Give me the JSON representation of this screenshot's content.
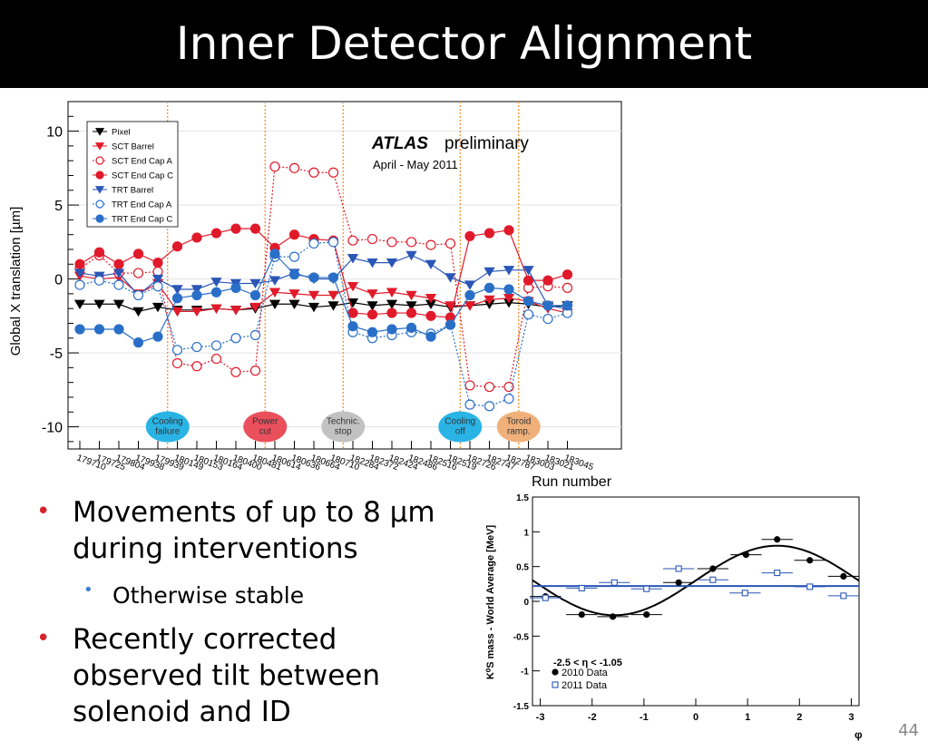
{
  "slide": {
    "title": "Inner Detector Alignment",
    "page_number": "44",
    "bullets": [
      {
        "level": 1,
        "text_lines": [
          "Movements of up to 8 µm",
          "during interventions"
        ]
      },
      {
        "level": 2,
        "text_lines": [
          "Otherwise stable"
        ]
      },
      {
        "level": 1,
        "text_lines": [
          "Recently corrected",
          "observed tilt between",
          "solenoid and ID"
        ]
      }
    ]
  },
  "chart_data": [
    {
      "type": "line",
      "ylabel": "Global X translation [µm]",
      "xlabel": "Run number",
      "ylim": [
        -11.5,
        12
      ],
      "yticks": [
        -10,
        -5,
        0,
        5,
        10
      ],
      "grid": true,
      "legend_position": "top-left",
      "annotation_main": "ATLAS",
      "annotation_sub": "preliminary",
      "annotation_period": "April - May 2011",
      "categories": [
        "179710",
        "179725",
        "179804",
        "179938",
        "179939",
        "180149",
        "180153",
        "180164",
        "180400",
        "180481",
        "180614",
        "180636",
        "180664",
        "180710",
        "182284",
        "182372",
        "182424",
        "182486",
        "182516",
        "182519",
        "182726",
        "182747",
        "182787",
        "183003",
        "183021",
        "183045"
      ],
      "events": [
        {
          "label_lines": [
            "Cooling",
            "failure"
          ],
          "after_index": 4,
          "marker_index": 4.5,
          "color": "#2ab4e6"
        },
        {
          "label_lines": [
            "Power",
            "cut"
          ],
          "after_index": 9,
          "marker_index": 9.5,
          "color": "#ea4f5c"
        },
        {
          "label_lines": [
            "Technic.",
            "stop"
          ],
          "after_index": 13,
          "marker_index": 13.5,
          "color": "#c2c2c2"
        },
        {
          "label_lines": [
            "Cooling",
            "off"
          ],
          "after_index": 19,
          "marker_index": 19.5,
          "color": "#2ab4e6"
        },
        {
          "label_lines": [
            "Toroid",
            "ramp."
          ],
          "after_index": 22,
          "marker_index": 22.5,
          "color": "#f0b07a"
        }
      ],
      "series": [
        {
          "name": "Pixel",
          "color": "#000000",
          "marker": "triangle-down",
          "dashed": false,
          "filled": true,
          "values": [
            -1.7,
            -1.7,
            -1.7,
            -2.2,
            -1.9,
            -2.1,
            -2.1,
            -2.0,
            -2.1,
            -2.0,
            -1.7,
            -1.7,
            -1.9,
            -1.8,
            -1.6,
            -1.8,
            -1.7,
            -1.8,
            -1.7,
            -1.9,
            -1.8,
            -1.7,
            -1.6,
            -1.7,
            -1.9,
            -1.8
          ]
        },
        {
          "name": "SCT Barrel",
          "color": "#e01a2a",
          "marker": "triangle-down",
          "dashed": false,
          "filled": true,
          "values": [
            0.2,
            0.0,
            0.1,
            -1.0,
            -0.3,
            -2.2,
            -2.2,
            -2.0,
            -2.1,
            -1.9,
            -0.9,
            -1.0,
            -1.1,
            -1.1,
            -0.5,
            -1.0,
            -0.9,
            -1.1,
            -1.3,
            -1.8,
            -1.8,
            -1.4,
            -1.3,
            -1.5,
            -2.0,
            -2.3
          ]
        },
        {
          "name": "SCT End Cap A",
          "color": "#e01a2a",
          "marker": "circle",
          "dashed": true,
          "filled": false,
          "values": [
            0.7,
            1.6,
            0.4,
            0.4,
            0.5,
            -5.7,
            -5.9,
            -5.4,
            -6.3,
            -6.2,
            7.6,
            7.5,
            7.2,
            7.2,
            2.6,
            2.7,
            2.5,
            2.5,
            2.3,
            2.4,
            -7.2,
            -7.3,
            -7.3,
            -0.6,
            -0.5,
            -0.6
          ]
        },
        {
          "name": "SCT End Cap C",
          "color": "#e01a2a",
          "marker": "circle",
          "dashed": false,
          "filled": true,
          "values": [
            1.0,
            1.8,
            1.0,
            1.7,
            1.1,
            2.2,
            2.8,
            3.1,
            3.4,
            3.4,
            2.1,
            3.0,
            2.7,
            2.6,
            -2.3,
            -2.4,
            -2.3,
            -2.3,
            -2.5,
            -2.6,
            2.9,
            3.1,
            3.3,
            -0.1,
            -0.1,
            0.3
          ]
        },
        {
          "name": "TRT Barrel",
          "color": "#2a56b6",
          "marker": "triangle-down",
          "dashed": false,
          "filled": true,
          "values": [
            0.4,
            0.2,
            0.4,
            -1.1,
            0.0,
            -0.7,
            -0.7,
            -0.2,
            -0.3,
            -0.3,
            -0.1,
            0.4,
            0.0,
            0.0,
            1.4,
            1.1,
            1.1,
            1.6,
            1.0,
            0.1,
            -0.4,
            0.5,
            0.6,
            0.6,
            -1.8,
            -2.0
          ]
        },
        {
          "name": "TRT End Cap A",
          "color": "#2a6fc7",
          "marker": "circle",
          "dashed": true,
          "filled": false,
          "values": [
            -0.4,
            -0.1,
            -0.4,
            -1.1,
            -0.5,
            -4.8,
            -4.6,
            -4.5,
            -4.0,
            -3.8,
            1.5,
            1.5,
            2.4,
            2.5,
            -3.6,
            -4.0,
            -3.8,
            -3.6,
            -3.7,
            -3.1,
            -8.5,
            -8.6,
            -8.1,
            -2.4,
            -2.7,
            -2.3
          ]
        },
        {
          "name": "TRT End Cap C",
          "color": "#2a6fc7",
          "marker": "circle",
          "dashed": false,
          "filled": true,
          "values": [
            -3.4,
            -3.4,
            -3.4,
            -4.3,
            -3.9,
            -1.3,
            -1.1,
            -0.9,
            -0.6,
            -1.1,
            1.7,
            0.3,
            0.1,
            0.1,
            -3.2,
            -3.6,
            -3.4,
            -3.3,
            -3.9,
            -3.1,
            -1.1,
            -0.6,
            -0.7,
            -1.5,
            -1.8,
            -1.8
          ]
        }
      ]
    },
    {
      "type": "scatter",
      "ylabel": "K<sup>0</sup><sub>S</sub> mass - World Average [MeV]",
      "ylabel_plain": "K⁰S mass - World Average [MeV]",
      "xlabel": "φ",
      "xlim": [
        -3.15,
        3.15
      ],
      "ylim": [
        -1.5,
        1.5
      ],
      "xticks": [
        -3,
        -2,
        -1,
        0,
        1,
        2,
        3
      ],
      "yticks": [
        -1.5,
        -1,
        -0.5,
        0,
        0.5,
        1,
        1.5
      ],
      "cut_label": "-2.5 < η < -1.05",
      "series": [
        {
          "name": "2010 Data",
          "color": "#000000",
          "marker": "filled-circle",
          "xerr": 0.3,
          "points": [
            {
              "x": -2.9,
              "y": 0.07
            },
            {
              "x": -2.2,
              "y": -0.19
            },
            {
              "x": -1.6,
              "y": -0.22
            },
            {
              "x": -0.95,
              "y": -0.19
            },
            {
              "x": -0.33,
              "y": 0.27
            },
            {
              "x": 0.33,
              "y": 0.47
            },
            {
              "x": 0.97,
              "y": 0.67
            },
            {
              "x": 1.57,
              "y": 0.89
            },
            {
              "x": 2.2,
              "y": 0.59
            },
            {
              "x": 2.85,
              "y": 0.36
            }
          ]
        },
        {
          "name": "2011 Data",
          "color": "#2a56b6",
          "marker": "open-square",
          "xerr": 0.3,
          "points": [
            {
              "x": -2.9,
              "y": 0.05
            },
            {
              "x": -2.2,
              "y": 0.19
            },
            {
              "x": -1.57,
              "y": 0.27
            },
            {
              "x": -0.95,
              "y": 0.18
            },
            {
              "x": -0.33,
              "y": 0.47
            },
            {
              "x": 0.33,
              "y": 0.31
            },
            {
              "x": 0.95,
              "y": 0.12
            },
            {
              "x": 1.57,
              "y": 0.41
            },
            {
              "x": 2.2,
              "y": 0.21
            },
            {
              "x": 2.85,
              "y": 0.08
            }
          ]
        }
      ],
      "fits": [
        {
          "series": "2010 Data",
          "color": "#000000",
          "form": "sine",
          "offset": 0.3,
          "amplitude": 0.5,
          "phase": 0
        },
        {
          "series": "2011 Data",
          "color": "#2a56b6",
          "form": "line",
          "intercept": 0.22,
          "slope": 0.0
        }
      ]
    }
  ]
}
